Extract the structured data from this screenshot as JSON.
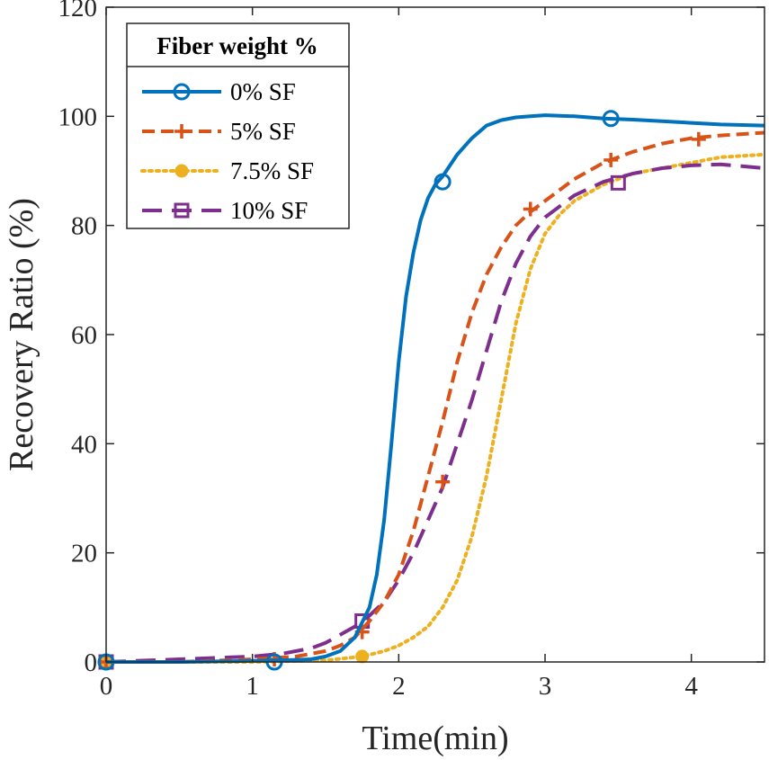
{
  "chart_data": {
    "type": "line",
    "xlabel": "Time(min)",
    "ylabel": "Recovery Ratio (%)",
    "xlim": [
      0,
      4.5
    ],
    "ylim": [
      0,
      120
    ],
    "xticks": [
      0,
      1,
      2,
      3,
      4
    ],
    "yticks": [
      0,
      20,
      40,
      60,
      80,
      100,
      120
    ],
    "grid": false,
    "legend": {
      "title": "Fiber weight %",
      "position": "top-left"
    },
    "series": [
      {
        "name": "0% SF",
        "color": "#0072BD",
        "line_style": "solid",
        "marker": "circle",
        "x": [
          0,
          0.5,
          1.0,
          1.2,
          1.4,
          1.5,
          1.6,
          1.7,
          1.8,
          1.85,
          1.9,
          1.95,
          2.0,
          2.05,
          2.1,
          2.15,
          2.2,
          2.25,
          2.3,
          2.4,
          2.5,
          2.6,
          2.7,
          2.8,
          2.9,
          3.0,
          3.2,
          3.4,
          3.6,
          3.8,
          4.0,
          4.2,
          4.5
        ],
        "y": [
          0,
          0,
          0.2,
          0.3,
          0.5,
          1.0,
          2.0,
          4.5,
          10,
          16,
          26,
          40,
          55,
          67,
          75,
          81,
          85,
          87.5,
          89,
          93,
          96,
          98.3,
          99.3,
          99.8,
          100.0,
          100.2,
          100.0,
          99.6,
          99.4,
          99.1,
          98.8,
          98.5,
          98.3
        ],
        "marker_x": [
          0,
          1.15,
          2.3,
          3.45
        ],
        "marker_y": [
          0,
          0,
          88,
          99.6
        ]
      },
      {
        "name": "5% SF",
        "color": "#D95319",
        "line_style": "dashed",
        "marker": "plus",
        "x": [
          0,
          0.5,
          1.0,
          1.3,
          1.5,
          1.6,
          1.7,
          1.8,
          1.9,
          2.0,
          2.1,
          2.2,
          2.3,
          2.4,
          2.5,
          2.6,
          2.7,
          2.8,
          2.9,
          3.0,
          3.2,
          3.4,
          3.6,
          3.8,
          4.0,
          4.2,
          4.5
        ],
        "y": [
          0,
          0,
          0.5,
          1.0,
          2.0,
          3.0,
          4.5,
          7.5,
          11,
          16,
          24,
          34,
          44,
          55,
          64,
          71,
          76,
          80,
          82.5,
          84.5,
          88.5,
          91.5,
          93.5,
          95,
          96,
          96.5,
          97
        ],
        "marker_x": [
          0,
          1.15,
          1.75,
          2.3,
          2.9,
          3.45,
          4.05
        ],
        "marker_y": [
          0,
          0.5,
          5.5,
          33,
          83,
          92,
          95.8
        ]
      },
      {
        "name": "7.5% SF",
        "color": "#EDB120",
        "line_style": "dotted",
        "marker": "filled-circle",
        "x": [
          0,
          0.5,
          1.0,
          1.5,
          1.75,
          1.9,
          2.0,
          2.1,
          2.2,
          2.3,
          2.4,
          2.5,
          2.6,
          2.7,
          2.8,
          2.9,
          3.0,
          3.1,
          3.2,
          3.4,
          3.6,
          3.8,
          4.0,
          4.2,
          4.5
        ],
        "y": [
          0,
          0,
          0,
          0.3,
          1.0,
          2.0,
          3.0,
          4.5,
          6.5,
          10,
          15,
          23,
          34,
          48,
          62,
          72,
          78.5,
          82,
          84.5,
          87.5,
          89.5,
          90.5,
          91.5,
          92.5,
          93
        ],
        "marker_x": [
          0,
          1.75
        ],
        "marker_y": [
          0,
          1.0
        ]
      },
      {
        "name": "10% SF",
        "color": "#7E2F8E",
        "line_style": "long-dashed",
        "marker": "square",
        "x": [
          0,
          0.5,
          1.0,
          1.2,
          1.4,
          1.5,
          1.6,
          1.7,
          1.75,
          1.8,
          1.9,
          2.0,
          2.1,
          2.2,
          2.3,
          2.4,
          2.5,
          2.6,
          2.7,
          2.8,
          2.9,
          3.0,
          3.2,
          3.4,
          3.6,
          3.8,
          4.0,
          4.2,
          4.5
        ],
        "y": [
          0,
          0.5,
          1.0,
          1.5,
          2.5,
          3.5,
          5.0,
          6.5,
          7.5,
          8.5,
          11,
          15,
          20,
          26,
          32,
          40,
          48,
          57,
          66,
          73,
          78,
          81.5,
          85.5,
          88,
          89.5,
          90.5,
          91,
          91.2,
          90.5
        ],
        "marker_x": [
          0,
          1.75,
          3.5
        ],
        "marker_y": [
          0,
          7.5,
          87.8
        ]
      }
    ]
  }
}
